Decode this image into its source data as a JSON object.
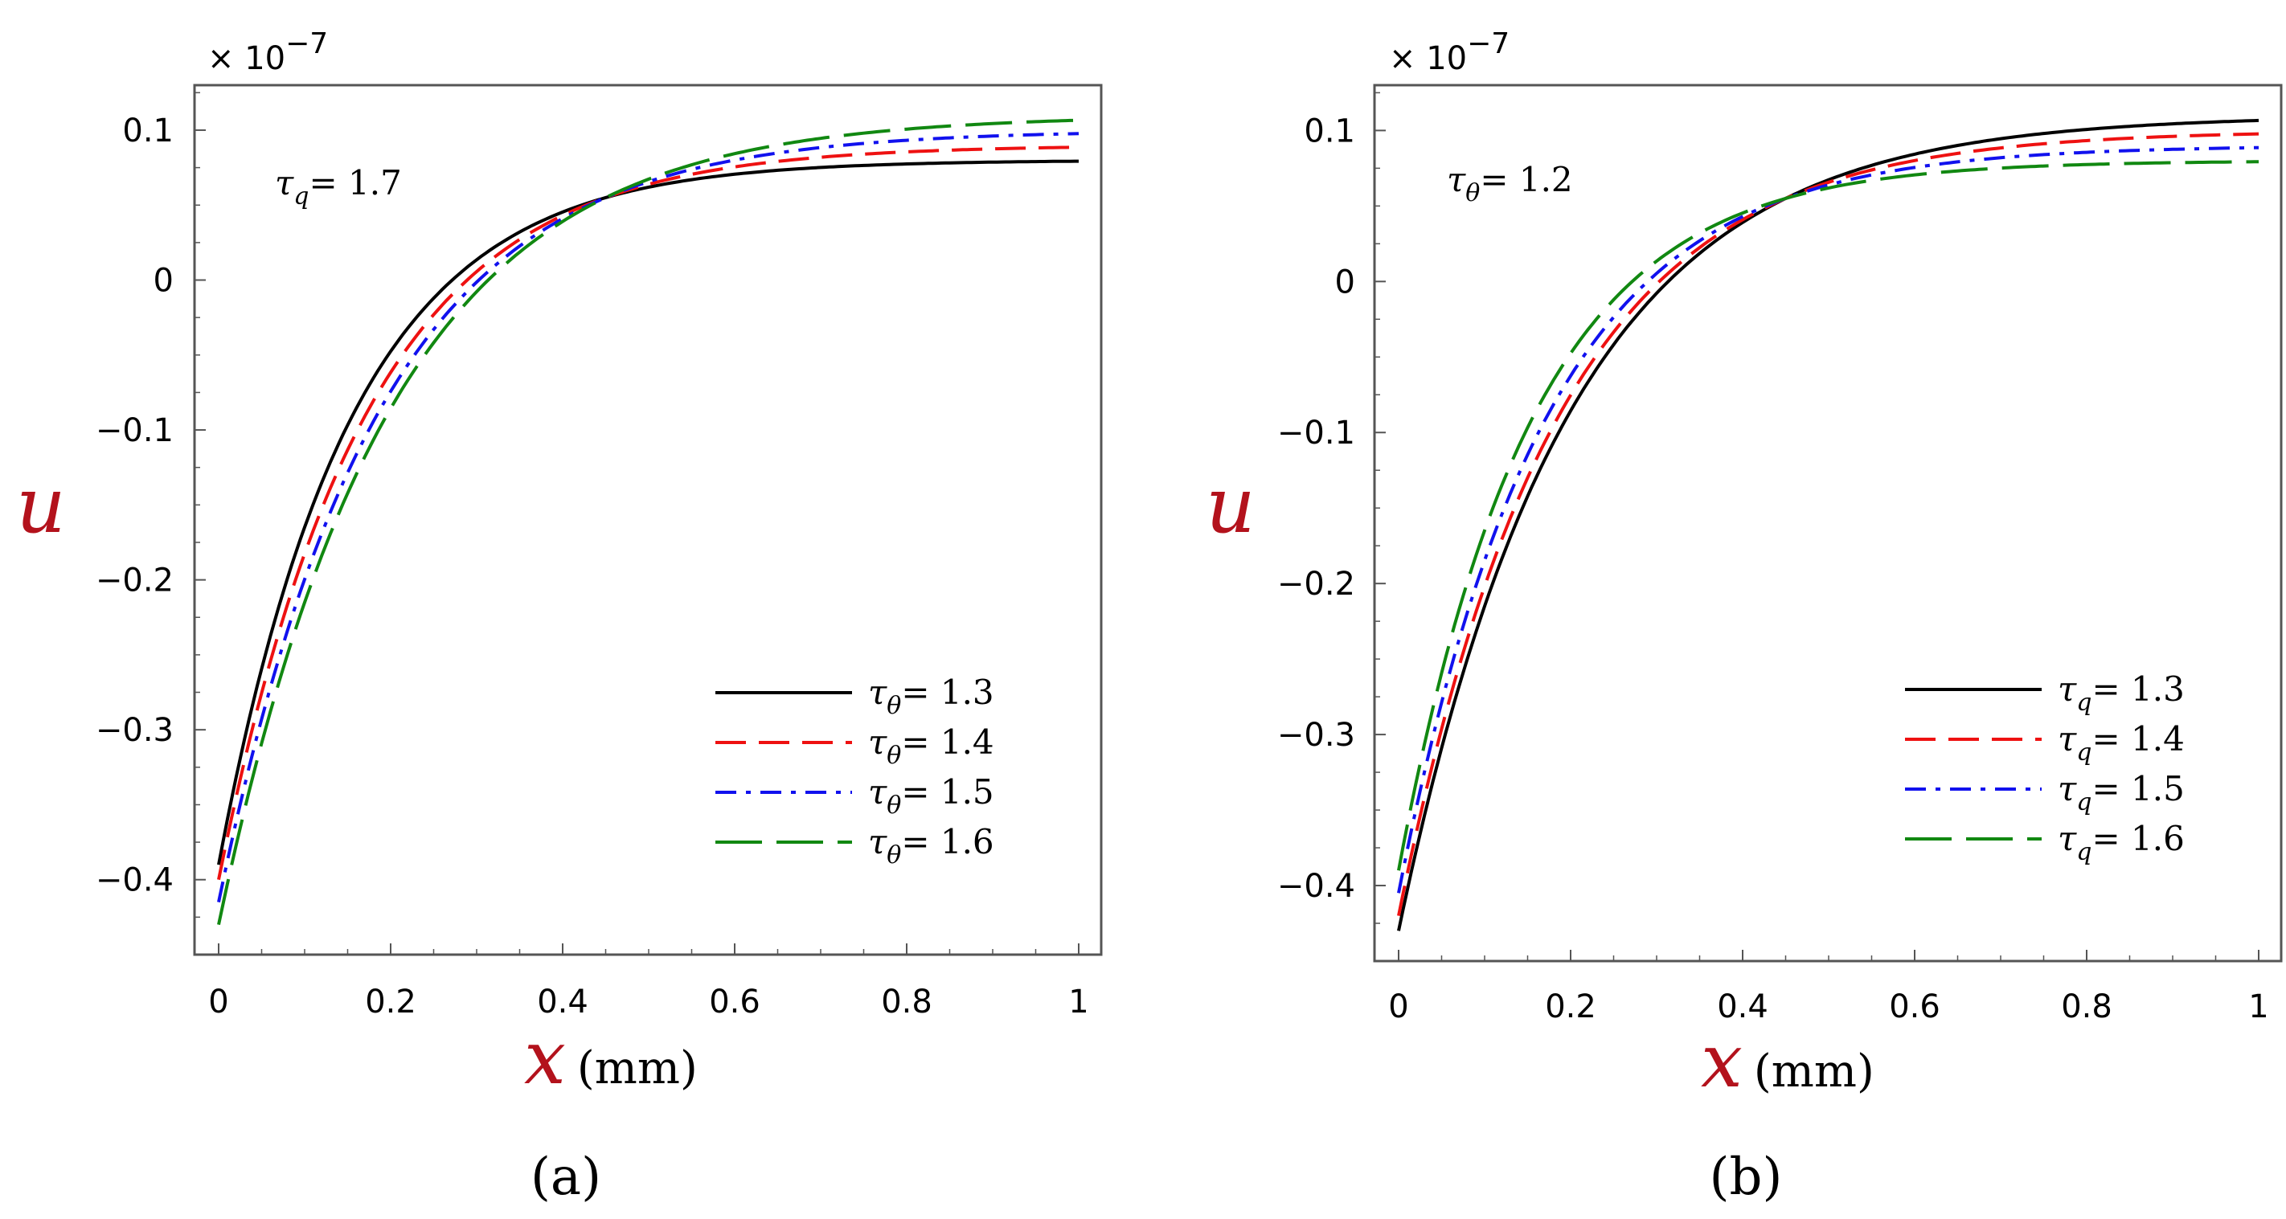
{
  "chart_data": [
    {
      "type": "line",
      "panel_label": "(a)",
      "multiplier": "× 10",
      "multiplier_exp": "−7",
      "xlabel_symbol": "x",
      "xlabel_units": "(mm)",
      "ylabel": "u",
      "xlim": [
        0,
        1
      ],
      "ylim": [
        -0.45,
        0.13
      ],
      "xticks": [
        0,
        0.2,
        0.4,
        0.6,
        0.8,
        1
      ],
      "xtick_labels": [
        "0",
        "0.2",
        "0.4",
        "0.6",
        "0.8",
        "1"
      ],
      "yticks": [
        -0.4,
        -0.3,
        -0.2,
        -0.1,
        0,
        0.1
      ],
      "ytick_labels": [
        "−0.4",
        "−0.3",
        "−0.2",
        "−0.1",
        "0",
        "0.1"
      ],
      "annotation": {
        "sym": "τ",
        "sub": "q",
        "text": "= 1.7"
      },
      "series": [
        {
          "name": "τθ = 1.3",
          "sym": "τ",
          "sub": "θ",
          "val": "= 1.3",
          "color": "#000000",
          "dash": "solid",
          "y0": -0.39,
          "yinf": 0.08
        },
        {
          "name": "τθ = 1.4",
          "sym": "τ",
          "sub": "θ",
          "val": "= 1.4",
          "color": "#ee1111",
          "dash": "dash",
          "y0": -0.4,
          "yinf": 0.09
        },
        {
          "name": "τθ = 1.5",
          "sym": "τ",
          "sub": "θ",
          "val": "= 1.5",
          "color": "#1111ee",
          "dash": "dashdot",
          "y0": -0.415,
          "yinf": 0.1
        },
        {
          "name": "τθ = 1.6",
          "sym": "τ",
          "sub": "θ",
          "val": "= 1.6",
          "color": "#118811",
          "dash": "longdash",
          "y0": -0.43,
          "yinf": 0.11
        }
      ]
    },
    {
      "type": "line",
      "panel_label": "(b)",
      "multiplier": "× 10",
      "multiplier_exp": "−7",
      "xlabel_symbol": "x",
      "xlabel_units": "(mm)",
      "ylabel": "u",
      "xlim": [
        0,
        1
      ],
      "ylim": [
        -0.45,
        0.13
      ],
      "xticks": [
        0,
        0.2,
        0.4,
        0.6,
        0.8,
        1
      ],
      "xtick_labels": [
        "0",
        "0.2",
        "0.4",
        "0.6",
        "0.8",
        "1"
      ],
      "yticks": [
        -0.4,
        -0.3,
        -0.2,
        -0.1,
        0,
        0.1
      ],
      "ytick_labels": [
        "−0.4",
        "−0.3",
        "−0.2",
        "−0.1",
        "0",
        "0.1"
      ],
      "annotation": {
        "sym": "τ",
        "sub": "θ",
        "text": "= 1.2"
      },
      "series": [
        {
          "name": "τq = 1.3",
          "sym": "τ",
          "sub": "q",
          "val": "= 1.3",
          "color": "#000000",
          "dash": "solid",
          "y0": -0.43,
          "yinf": 0.11
        },
        {
          "name": "τq = 1.4",
          "sym": "τ",
          "sub": "q",
          "val": "= 1.4",
          "color": "#ee1111",
          "dash": "dash",
          "y0": -0.42,
          "yinf": 0.1
        },
        {
          "name": "τq = 1.5",
          "sym": "τ",
          "sub": "q",
          "val": "= 1.5",
          "color": "#1111ee",
          "dash": "dashdot",
          "y0": -0.405,
          "yinf": 0.09
        },
        {
          "name": "τq = 1.6",
          "sym": "τ",
          "sub": "q",
          "val": "= 1.6",
          "color": "#118811",
          "dash": "longdash",
          "y0": -0.39,
          "yinf": 0.08
        }
      ]
    }
  ]
}
